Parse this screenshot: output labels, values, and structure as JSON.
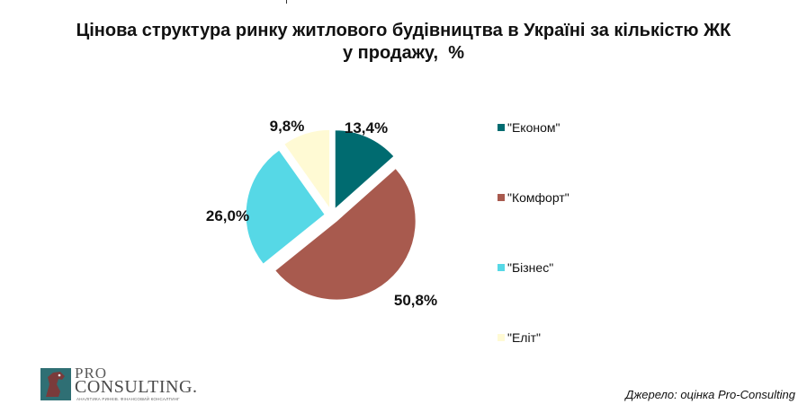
{
  "title": [
    "Цінова структура ринку житлового будівництва в Україні за кількістю ЖК",
    "у продажу,  %"
  ],
  "chart_data": {
    "type": "pie",
    "categories": [
      "\"Економ\"",
      "\"Комфорт\"",
      "\"Бізнес\"",
      "\"Еліт\""
    ],
    "values": [
      13.4,
      50.8,
      26.0,
      9.8
    ],
    "data_labels": [
      "13,4%",
      "50,8%",
      "26,0%",
      "9,8%"
    ],
    "colors": [
      "#006b70",
      "#a85a4e",
      "#56d8e6",
      "#fffad4"
    ],
    "legend_position": "right",
    "exploded": true
  },
  "logo": {
    "pro": "PRO",
    "consulting": "CONSULTING.",
    "tagline": "АНАЛІТИКА РИНКІВ. ФІНАНСОВИЙ КОНСАЛТИНГ"
  },
  "source": "Джерело: оцінка Pro-Consulting"
}
